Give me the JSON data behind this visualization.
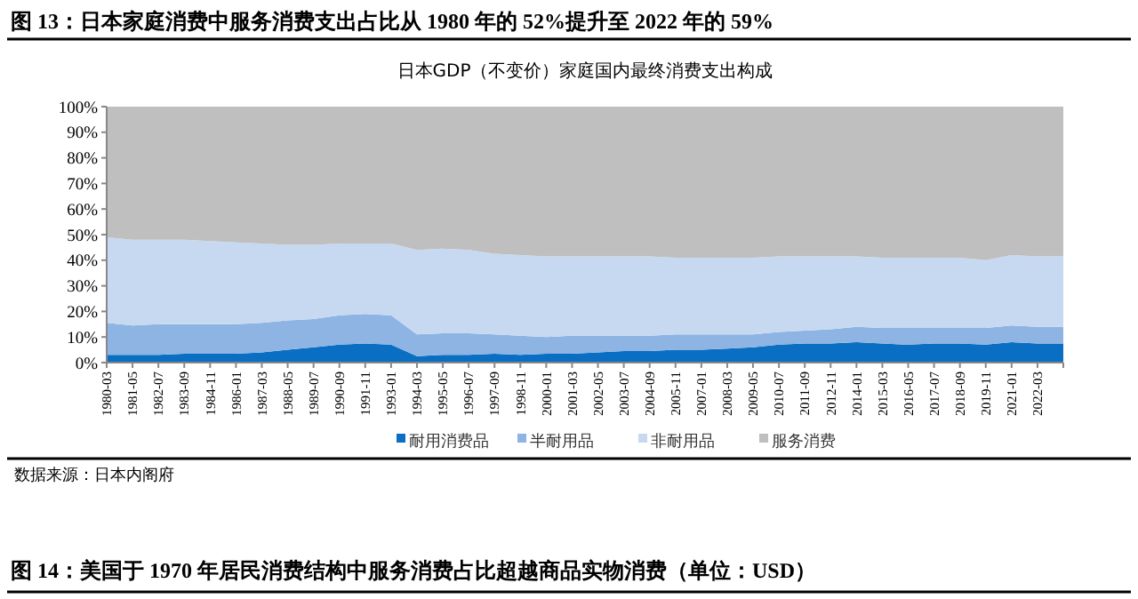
{
  "chart_data": {
    "type": "area",
    "stacked": true,
    "title": "图 13：日本家庭消费中服务消费支出占比从 1980 年的 52%提升至 2022 年的 59%",
    "subtitle": "日本GDP（不变价）家庭国内最终消费支出构成",
    "categories": [
      "1980-03",
      "1981-05",
      "1982-07",
      "1983-09",
      "1984-11",
      "1986-01",
      "1987-03",
      "1988-05",
      "1989-07",
      "1990-09",
      "1991-11",
      "1993-01",
      "1994-03",
      "1995-05",
      "1996-07",
      "1997-09",
      "1998-11",
      "2000-01",
      "2001-03",
      "2002-05",
      "2003-07",
      "2004-09",
      "2005-11",
      "2007-01",
      "2008-03",
      "2009-05",
      "2010-07",
      "2011-09",
      "2012-11",
      "2014-01",
      "2015-03",
      "2016-05",
      "2017-07",
      "2018-09",
      "2019-11",
      "2021-01",
      "2022-03",
      null
    ],
    "series": [
      {
        "name": "耐用消费品",
        "color": "#0a6fc2",
        "values": [
          3,
          3,
          3,
          3.5,
          3.5,
          3.5,
          4,
          5,
          6,
          7,
          7.5,
          7,
          2.5,
          3,
          3,
          3.5,
          3,
          3.5,
          3.5,
          4,
          4.5,
          4.5,
          5,
          5,
          5.5,
          6,
          7,
          7.5,
          7.5,
          8,
          7.5,
          7,
          7.5,
          7.5,
          7,
          8,
          7.5,
          7.5
        ]
      },
      {
        "name": "半耐用品",
        "color": "#8db4e2",
        "values": [
          12.5,
          11.5,
          12,
          11.5,
          11.5,
          11.5,
          11.5,
          11.5,
          11,
          11.5,
          11.5,
          11.5,
          8.5,
          8.5,
          8.5,
          7.5,
          7.5,
          6.5,
          7,
          6.5,
          6,
          6,
          6,
          6,
          5.5,
          5,
          5,
          5,
          5.5,
          6,
          6,
          6.5,
          6,
          6,
          6.5,
          6.5,
          6.5,
          6.5
        ]
      },
      {
        "name": "非耐用品",
        "color": "#c6d9f1",
        "values": [
          33.5,
          33.5,
          33,
          33,
          32.5,
          32,
          31,
          29.5,
          29,
          28,
          27.5,
          28,
          33,
          33,
          32.5,
          31.5,
          31.5,
          31.5,
          31,
          31,
          31,
          31,
          30,
          30,
          30,
          30,
          29.5,
          29,
          28.5,
          27.5,
          27.5,
          27.5,
          27.5,
          27.5,
          26.5,
          27.5,
          27.5,
          27.5
        ]
      },
      {
        "name": "服务消费",
        "color": "#bfbfbf",
        "values": [
          51,
          52,
          52,
          52,
          52.5,
          53,
          53.5,
          54,
          54,
          53.5,
          53.5,
          53.5,
          56,
          55.5,
          56,
          57.5,
          58,
          58.5,
          58.5,
          58.5,
          58.5,
          58.5,
          59,
          59,
          59,
          59,
          58.5,
          58.5,
          58.5,
          58.5,
          59,
          59,
          59,
          59,
          60,
          58,
          58.5,
          58.5
        ]
      }
    ],
    "ylim": [
      0,
      100
    ],
    "yticks": [
      {
        "value": 0,
        "label": "0%"
      },
      {
        "value": 10,
        "label": "10%"
      },
      {
        "value": 20,
        "label": "20%"
      },
      {
        "value": 30,
        "label": "30%"
      },
      {
        "value": 40,
        "label": "40%"
      },
      {
        "value": 50,
        "label": "50%"
      },
      {
        "value": 60,
        "label": "60%"
      },
      {
        "value": 70,
        "label": "70%"
      },
      {
        "value": 80,
        "label": "80%"
      },
      {
        "value": 90,
        "label": "90%"
      },
      {
        "value": 100,
        "label": "100%"
      }
    ],
    "grid": false,
    "legend": "bottom",
    "annotations": [
      "数据来源：日本内阁府",
      "图 14：美国于 1970 年居民消费结构中服务消费占比超越商品实物消费（单位：USD）"
    ]
  }
}
